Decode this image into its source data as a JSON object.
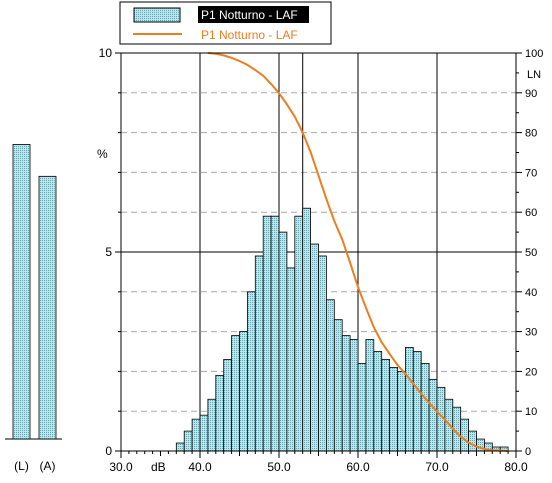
{
  "chart_data": {
    "type": "bar",
    "legend": [
      {
        "label": "P1 Notturno - LAF",
        "kind": "bar",
        "highlighted": true
      },
      {
        "label": "P1 Notturno - LAF",
        "kind": "line",
        "color": "#ee7d1e"
      }
    ],
    "left_axis": {
      "min": 0,
      "max": 10,
      "ticks": [
        0,
        5,
        10
      ],
      "label": "%"
    },
    "right_axis": {
      "min": 0,
      "max": 100,
      "ticks": [
        0,
        10,
        20,
        30,
        40,
        50,
        60,
        70,
        80,
        90,
        100
      ],
      "label": "LN"
    },
    "x_axis": {
      "min": 30,
      "max": 80,
      "ticks": [
        "30.0",
        "40.0",
        "50.0",
        "60.0",
        "70.0",
        "80.0"
      ],
      "unit": "dB"
    },
    "percentile_lines": [
      40,
      50,
      53,
      60,
      70
    ],
    "bars": {
      "x_start": 37.0,
      "bin_width": 1,
      "values": [
        0.2,
        0.5,
        0.8,
        0.9,
        1.3,
        1.9,
        2.3,
        2.9,
        3.0,
        4.0,
        4.9,
        5.9,
        5.9,
        5.5,
        4.6,
        5.9,
        6.1,
        5.2,
        4.9,
        3.8,
        3.3,
        2.9,
        2.8,
        2.2,
        2.8,
        2.5,
        2.3,
        2.1,
        2.0,
        2.6,
        2.5,
        2.2,
        1.8,
        1.6,
        1.3,
        1.1,
        0.8,
        0.5,
        0.3,
        0.2,
        0.1,
        0.1
      ]
    },
    "line": {
      "color": "#ee7d1e",
      "points": [
        [
          41.0,
          100
        ],
        [
          42.0,
          99.8
        ],
        [
          43.0,
          99.4
        ],
        [
          44.0,
          98.8
        ],
        [
          45.0,
          98.0
        ],
        [
          46.0,
          97.0
        ],
        [
          47.0,
          95.7
        ],
        [
          48.0,
          94.3
        ],
        [
          49.0,
          92.2
        ],
        [
          50.0,
          89.9
        ],
        [
          51.0,
          87.1
        ],
        [
          52.0,
          84.0
        ],
        [
          53.0,
          80.0
        ],
        [
          54.0,
          75.1
        ],
        [
          55.0,
          69.2
        ],
        [
          56.0,
          63.3
        ],
        [
          57.0,
          57.8
        ],
        [
          58.0,
          53.2
        ],
        [
          59.0,
          47.3
        ],
        [
          60.0,
          41.2
        ],
        [
          61.0,
          36.0
        ],
        [
          62.0,
          31.1
        ],
        [
          63.0,
          27.3
        ],
        [
          64.0,
          24.4
        ],
        [
          65.0,
          21.6
        ],
        [
          66.0,
          19.4
        ],
        [
          67.0,
          16.9
        ],
        [
          68.0,
          14.4
        ],
        [
          69.0,
          12.1
        ],
        [
          70.0,
          9.9
        ],
        [
          71.0,
          7.9
        ],
        [
          72.0,
          5.6
        ],
        [
          73.0,
          3.6
        ],
        [
          74.0,
          2.1
        ],
        [
          75.0,
          1.1
        ],
        [
          76.0,
          0.5
        ],
        [
          77.0,
          0.2
        ],
        [
          78.0,
          0.1
        ],
        [
          79.0,
          0.0
        ]
      ]
    },
    "summary_bars": {
      "labels": [
        "(L)",
        "(A)"
      ],
      "values": [
        7.4,
        6.6
      ]
    }
  }
}
